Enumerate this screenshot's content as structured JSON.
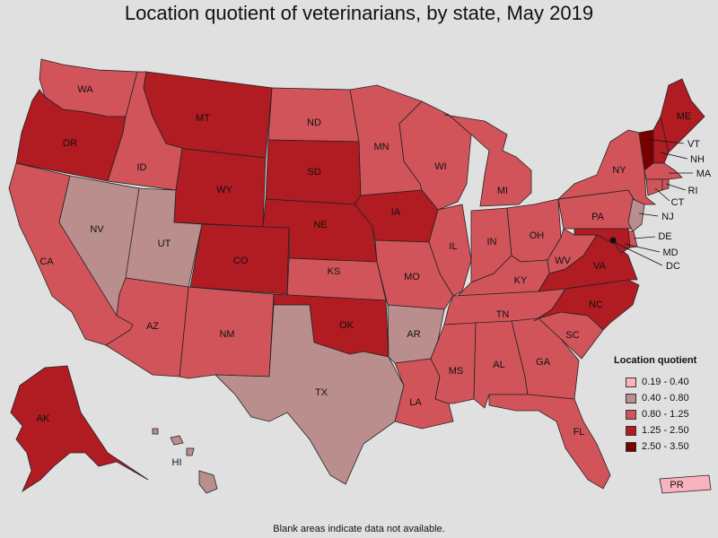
{
  "title": "Location quotient of veterinarians, by state, May 2019",
  "footnote": "Blank areas indicate data not available.",
  "legend": {
    "title": "Location quotient",
    "items": [
      {
        "label": "0.19 - 0.40",
        "color": "#f9b3bf"
      },
      {
        "label": "0.40 - 0.80",
        "color": "#bb8e8e"
      },
      {
        "label": "0.80 - 1.25",
        "color": "#d2545b"
      },
      {
        "label": "1.25 - 2.50",
        "color": "#b01c22"
      },
      {
        "label": "2.50 - 3.50",
        "color": "#7a0000"
      }
    ]
  },
  "states": [
    {
      "code": "WA",
      "class": 3
    },
    {
      "code": "OR",
      "class": 4
    },
    {
      "code": "CA",
      "class": 3
    },
    {
      "code": "ID",
      "class": 3
    },
    {
      "code": "NV",
      "class": 2
    },
    {
      "code": "UT",
      "class": 2
    },
    {
      "code": "AZ",
      "class": 3
    },
    {
      "code": "MT",
      "class": 4
    },
    {
      "code": "WY",
      "class": 4
    },
    {
      "code": "CO",
      "class": 4
    },
    {
      "code": "NM",
      "class": 3
    },
    {
      "code": "ND",
      "class": 3
    },
    {
      "code": "SD",
      "class": 4
    },
    {
      "code": "NE",
      "class": 4
    },
    {
      "code": "KS",
      "class": 3
    },
    {
      "code": "OK",
      "class": 4
    },
    {
      "code": "TX",
      "class": 2
    },
    {
      "code": "MN",
      "class": 3
    },
    {
      "code": "IA",
      "class": 4
    },
    {
      "code": "MO",
      "class": 3
    },
    {
      "code": "AR",
      "class": 2
    },
    {
      "code": "LA",
      "class": 3
    },
    {
      "code": "WI",
      "class": 3
    },
    {
      "code": "IL",
      "class": 3
    },
    {
      "code": "MI",
      "class": 3
    },
    {
      "code": "IN",
      "class": 3
    },
    {
      "code": "OH",
      "class": 3
    },
    {
      "code": "KY",
      "class": 3
    },
    {
      "code": "TN",
      "class": 3
    },
    {
      "code": "MS",
      "class": 3
    },
    {
      "code": "AL",
      "class": 3
    },
    {
      "code": "GA",
      "class": 3
    },
    {
      "code": "FL",
      "class": 3
    },
    {
      "code": "SC",
      "class": 3
    },
    {
      "code": "NC",
      "class": 4
    },
    {
      "code": "VA",
      "class": 4
    },
    {
      "code": "WV",
      "class": 3
    },
    {
      "code": "PA",
      "class": 3
    },
    {
      "code": "NY",
      "class": 3
    },
    {
      "code": "VT",
      "class": 5
    },
    {
      "code": "NH",
      "class": 4
    },
    {
      "code": "ME",
      "class": 4
    },
    {
      "code": "MA",
      "class": 3
    },
    {
      "code": "RI",
      "class": 3
    },
    {
      "code": "CT",
      "class": 3
    },
    {
      "code": "NJ",
      "class": 2
    },
    {
      "code": "DE",
      "class": 3
    },
    {
      "code": "MD",
      "class": 4
    },
    {
      "code": "DC",
      "class": 5
    },
    {
      "code": "AK",
      "class": 4
    },
    {
      "code": "HI",
      "class": 2
    },
    {
      "code": "PR",
      "class": 1
    }
  ]
}
